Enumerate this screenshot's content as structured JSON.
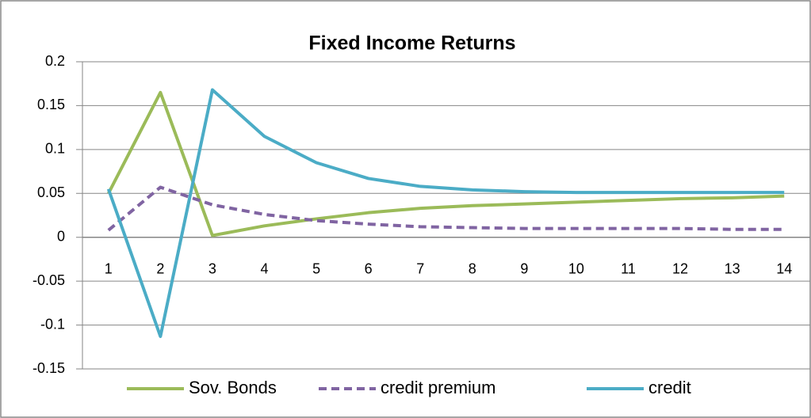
{
  "chart_data": {
    "type": "line",
    "title": "Fixed Income Returns",
    "categories": [
      1,
      2,
      3,
      4,
      5,
      6,
      7,
      8,
      9,
      10,
      11,
      12,
      13,
      14
    ],
    "series": [
      {
        "name": "Sov. Bonds",
        "color": "#9bbb59",
        "dashed": false,
        "values": [
          0.05,
          0.165,
          0.002,
          0.013,
          0.021,
          0.028,
          0.033,
          0.036,
          0.038,
          0.04,
          0.042,
          0.044,
          0.045,
          0.047
        ]
      },
      {
        "name": "credit premium",
        "color": "#8064a2",
        "dashed": true,
        "values": [
          0.008,
          0.057,
          0.037,
          0.026,
          0.019,
          0.015,
          0.012,
          0.011,
          0.01,
          0.01,
          0.01,
          0.01,
          0.009,
          0.009
        ]
      },
      {
        "name": "credit",
        "color": "#4bacc6",
        "dashed": false,
        "values": [
          0.055,
          -0.113,
          0.168,
          0.115,
          0.085,
          0.067,
          0.058,
          0.054,
          0.052,
          0.051,
          0.051,
          0.051,
          0.051,
          0.051
        ]
      }
    ],
    "ylim": [
      -0.15,
      0.2
    ],
    "yticks": [
      -0.15,
      -0.1,
      -0.05,
      0,
      0.05,
      0.1,
      0.15,
      0.2
    ],
    "grid": true,
    "legend": "bottom"
  }
}
